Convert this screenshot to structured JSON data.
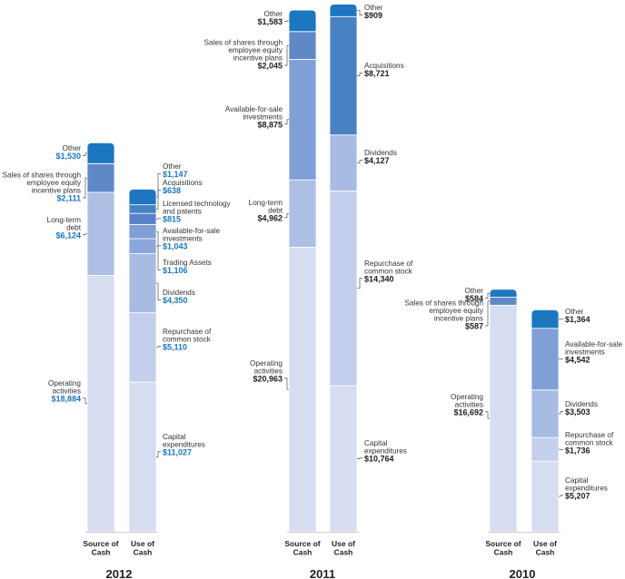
{
  "chart_data": {
    "type": "bar",
    "title": "",
    "unit_hint": "$ in millions",
    "colors": {
      "Operating activities": "#d6ddf1",
      "Capital expenditures": "#d6ddf1",
      "Long-term debt": "#aebfe5",
      "Repurchase of common stock": "#c4cfee",
      "Available-for-sale investments": "#7f9fd6",
      "Dividends": "#a7bbe3",
      "Sales of shares through employee equity incentive plans": "#5f88c7",
      "Trading Assets": "#8ba7dc",
      "Licensed technology and patents": "#5783c8",
      "Acquisitions": "#4982c4",
      "Other": "#1d77c0",
      "label_blue": "#1b76bc",
      "label_dark": "#222222",
      "axis": "#999999"
    },
    "panels": [
      {
        "year": "2012",
        "highlight": true,
        "bars": [
          {
            "category": "Source of\nCash",
            "segments": [
              {
                "label": "Operating\nactivities",
                "display": "$18,884",
                "value": 18884
              },
              {
                "label": "Long-term\ndebt",
                "display": "$6,124",
                "value": 6124
              },
              {
                "label": "Sales of shares through\nemployee equity\nincentive plans",
                "display": "$2,111",
                "value": 2111
              },
              {
                "label": "Other",
                "display": "$1,530",
                "value": 1530
              }
            ]
          },
          {
            "category": "Use of\nCash",
            "segments": [
              {
                "label": "Capital\nexpenditures",
                "display": "$11,027",
                "value": 11027
              },
              {
                "label": "Repurchase of\ncommon stock",
                "display": "$5,110",
                "value": 5110
              },
              {
                "label": "Dividends",
                "display": "$4,350",
                "value": 4350
              },
              {
                "label": "Trading Assets",
                "display": "$1,106",
                "value": 1106
              },
              {
                "label": "Available-for-sale\ninvestments",
                "display": "$1,043",
                "value": 1043
              },
              {
                "label": "Licensed technology\nand patents",
                "display": "$815",
                "value": 815
              },
              {
                "label": "Acquisitions",
                "display": "$638",
                "value": 638
              },
              {
                "label": "Other",
                "display": "$1,147",
                "value": 1147
              }
            ]
          }
        ]
      },
      {
        "year": "2011",
        "highlight": false,
        "bars": [
          {
            "category": "Source of\nCash",
            "segments": [
              {
                "label": "Operating\nactivities",
                "display": "$20,963",
                "value": 20963
              },
              {
                "label": "Long-term\ndebt",
                "display": "$4,962",
                "value": 4962
              },
              {
                "label": "Available-for-sale\ninvestments",
                "display": "$8,875",
                "value": 8875
              },
              {
                "label": "Sales of shares through\nemployee equity\nincentive plans",
                "display": "$2,045",
                "value": 2045
              },
              {
                "label": "Other",
                "display": "$1,583",
                "value": 1583
              }
            ]
          },
          {
            "category": "Use of\nCash",
            "segments": [
              {
                "label": "Capital\nexpenditures",
                "display": "$10,764",
                "value": 10764
              },
              {
                "label": "Repurchase of\ncommon stock",
                "display": "$14,340",
                "value": 14340
              },
              {
                "label": "Dividends",
                "display": "$4,127",
                "value": 4127
              },
              {
                "label": "Acquisitions",
                "display": "$8,721",
                "value": 8721
              },
              {
                "label": "Other",
                "display": "$909",
                "value": 909
              }
            ]
          }
        ]
      },
      {
        "year": "2010",
        "highlight": false,
        "bars": [
          {
            "category": "Source of\nCash",
            "segments": [
              {
                "label": "Operating\nactivities",
                "display": "$16,692",
                "value": 16692
              },
              {
                "label": "Sales of shares through\nemployee equity\nincentive plans",
                "display": "$587",
                "value": 587
              },
              {
                "label": "Other",
                "display": "$584",
                "value": 584
              }
            ]
          },
          {
            "category": "Use of\nCash",
            "segments": [
              {
                "label": "Capital\nexpenditures",
                "display": "$5,207",
                "value": 5207
              },
              {
                "label": "Repurchase of\ncommon stock",
                "display": "$1,736",
                "value": 1736
              },
              {
                "label": "Dividends",
                "display": "$3,503",
                "value": 3503
              },
              {
                "label": "Available-for-sale\ninvestments",
                "display": "$4,542",
                "value": 4542
              },
              {
                "label": "Other",
                "display": "$1,364",
                "value": 1364
              }
            ]
          }
        ]
      }
    ]
  }
}
